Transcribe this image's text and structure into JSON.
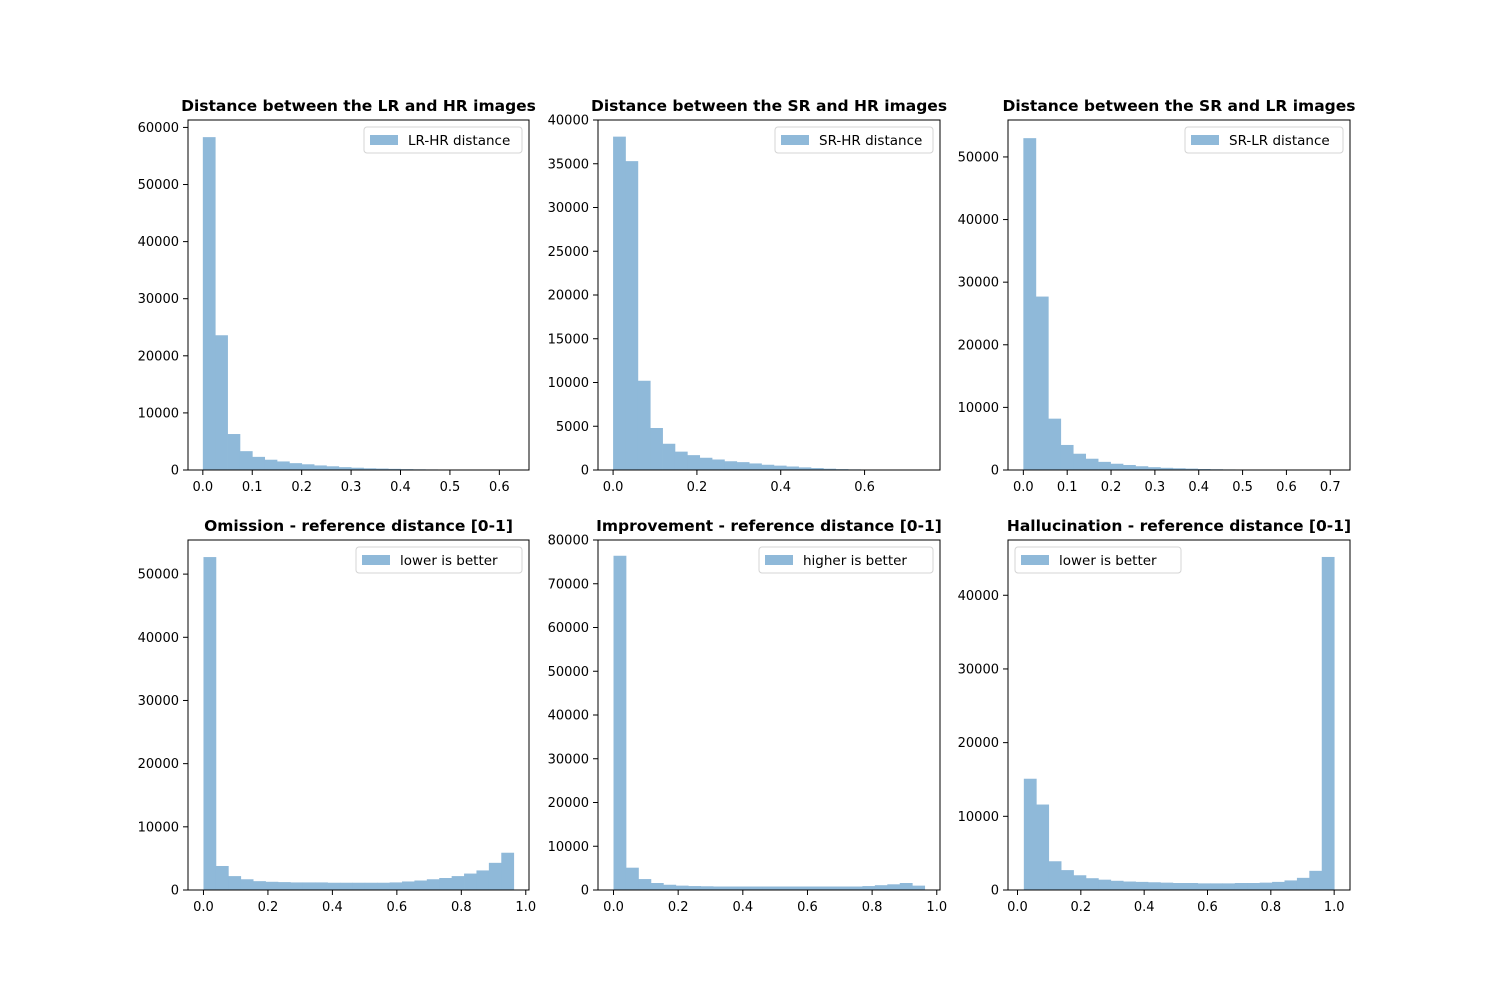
{
  "chart_data": [
    {
      "type": "histogram",
      "title": "Distance between the LR and HR images",
      "legend": "LR-HR distance",
      "legend_loc": "upper right",
      "color": "#8fb9d9",
      "xlim": [
        -0.03,
        0.66
      ],
      "ylim": [
        0,
        61300
      ],
      "xticks": [
        0.0,
        0.1,
        0.2,
        0.3,
        0.4,
        0.5,
        0.6
      ],
      "xtick_labels": [
        "0.0",
        "0.1",
        "0.2",
        "0.3",
        "0.4",
        "0.5",
        "0.6"
      ],
      "yticks": [
        0,
        10000,
        20000,
        30000,
        40000,
        50000,
        60000
      ],
      "ytick_labels": [
        "0",
        "10000",
        "20000",
        "30000",
        "40000",
        "50000",
        "60000"
      ],
      "bins_start": 0.0,
      "bin_width": 0.025,
      "values": [
        58300,
        23600,
        6300,
        3300,
        2300,
        1800,
        1500,
        1200,
        1000,
        800,
        650,
        500,
        400,
        300,
        250,
        200,
        150,
        120,
        100,
        60,
        40,
        25,
        15,
        10,
        5
      ]
    },
    {
      "type": "histogram",
      "title": "Distance between the SR and HR images",
      "legend": "SR-HR distance",
      "legend_loc": "upper right",
      "color": "#8fb9d9",
      "xlim": [
        -0.036,
        0.78
      ],
      "ylim": [
        0,
        40000
      ],
      "xticks": [
        0.0,
        0.2,
        0.4,
        0.6
      ],
      "xtick_labels": [
        "0.0",
        "0.2",
        "0.4",
        "0.6"
      ],
      "yticks": [
        0,
        5000,
        10000,
        15000,
        20000,
        25000,
        30000,
        35000,
        40000
      ],
      "ytick_labels": [
        "0",
        "5000",
        "10000",
        "15000",
        "20000",
        "25000",
        "30000",
        "35000",
        "40000"
      ],
      "bins_start": 0.0,
      "bin_width": 0.0295,
      "values": [
        38100,
        35300,
        10200,
        4800,
        3000,
        2100,
        1700,
        1400,
        1200,
        1000,
        900,
        750,
        600,
        500,
        400,
        300,
        220,
        150,
        100,
        70,
        40,
        25,
        10,
        5,
        2
      ]
    },
    {
      "type": "histogram",
      "title": "Distance between the SR and LR images",
      "legend": "SR-LR distance",
      "legend_loc": "upper right",
      "color": "#8fb9d9",
      "xlim": [
        -0.035,
        0.745
      ],
      "ylim": [
        0,
        55900
      ],
      "xticks": [
        0.0,
        0.1,
        0.2,
        0.3,
        0.4,
        0.5,
        0.6,
        0.7
      ],
      "xtick_labels": [
        "0.0",
        "0.1",
        "0.2",
        "0.3",
        "0.4",
        "0.5",
        "0.6",
        "0.7"
      ],
      "yticks": [
        0,
        10000,
        20000,
        30000,
        40000,
        50000
      ],
      "ytick_labels": [
        "0",
        "10000",
        "20000",
        "30000",
        "40000",
        "50000"
      ],
      "bins_start": 0.0,
      "bin_width": 0.0284,
      "values": [
        53000,
        27700,
        8200,
        4000,
        2600,
        1800,
        1300,
        1000,
        800,
        600,
        450,
        350,
        280,
        220,
        160,
        120,
        90,
        60,
        40,
        25,
        15,
        10,
        5,
        3,
        2
      ]
    },
    {
      "type": "histogram",
      "title": "Omission - reference distance [0-1]",
      "legend": "lower is better",
      "legend_loc": "upper right",
      "color": "#8fb9d9",
      "xlim": [
        -0.048,
        1.01
      ],
      "ylim": [
        0,
        55400
      ],
      "xticks": [
        0.0,
        0.2,
        0.4,
        0.6,
        0.8,
        1.0
      ],
      "xtick_labels": [
        "0.0",
        "0.2",
        "0.4",
        "0.6",
        "0.8",
        "1.0"
      ],
      "yticks": [
        0,
        10000,
        20000,
        30000,
        40000,
        50000
      ],
      "ytick_labels": [
        "0",
        "10000",
        "20000",
        "30000",
        "40000",
        "50000"
      ],
      "bins_start": 0.0,
      "bin_width": 0.0385,
      "values": [
        52700,
        3800,
        2200,
        1700,
        1400,
        1300,
        1250,
        1200,
        1200,
        1200,
        1150,
        1150,
        1150,
        1150,
        1150,
        1200,
        1350,
        1500,
        1700,
        1900,
        2200,
        2600,
        3100,
        4300,
        5900
      ]
    },
    {
      "type": "histogram",
      "title": "Improvement - reference distance [0-1]",
      "legend": "higher is better",
      "legend_loc": "upper right",
      "color": "#8fb9d9",
      "xlim": [
        -0.048,
        1.01
      ],
      "ylim": [
        0,
        80000
      ],
      "xticks": [
        0.0,
        0.2,
        0.4,
        0.6,
        0.8,
        1.0
      ],
      "xtick_labels": [
        "0.0",
        "0.2",
        "0.4",
        "0.6",
        "0.8",
        "1.0"
      ],
      "yticks": [
        0,
        10000,
        20000,
        30000,
        40000,
        50000,
        60000,
        70000,
        80000
      ],
      "ytick_labels": [
        "0",
        "10000",
        "20000",
        "30000",
        "40000",
        "50000",
        "60000",
        "70000",
        "80000"
      ],
      "bins_start": 0.0,
      "bin_width": 0.0385,
      "values": [
        76400,
        5100,
        2500,
        1600,
        1200,
        1000,
        900,
        850,
        800,
        800,
        800,
        800,
        800,
        800,
        800,
        800,
        800,
        800,
        800,
        800,
        900,
        1100,
        1300,
        1600,
        1000
      ]
    },
    {
      "type": "histogram",
      "title": "Hallucination - reference distance [0-1]",
      "legend": "lower is better",
      "legend_loc": "upper left",
      "color": "#8fb9d9",
      "xlim": [
        -0.03,
        1.05
      ],
      "ylim": [
        0,
        47500
      ],
      "xticks": [
        0.0,
        0.2,
        0.4,
        0.6,
        0.8,
        1.0
      ],
      "xtick_labels": [
        "0.0",
        "0.2",
        "0.4",
        "0.6",
        "0.8",
        "1.0"
      ],
      "yticks": [
        0,
        10000,
        20000,
        30000,
        40000
      ],
      "ytick_labels": [
        "0",
        "10000",
        "20000",
        "30000",
        "40000"
      ],
      "bins_start": 0.02,
      "bin_width": 0.0392,
      "values": [
        15100,
        11600,
        3900,
        2700,
        2000,
        1600,
        1400,
        1250,
        1150,
        1100,
        1050,
        1000,
        950,
        950,
        900,
        900,
        900,
        950,
        950,
        1000,
        1100,
        1300,
        1650,
        2600,
        45200
      ]
    }
  ]
}
